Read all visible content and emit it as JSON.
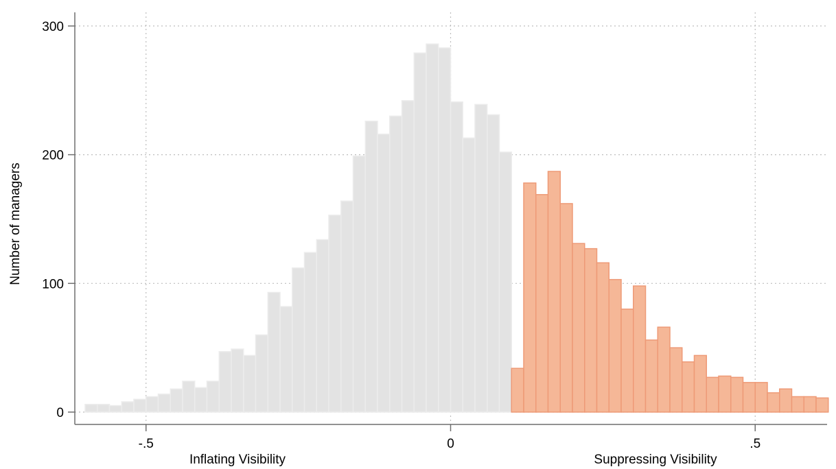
{
  "chart_data": {
    "type": "bar",
    "ylabel": "Number of managers",
    "xlim": [
      -0.615,
      0.615
    ],
    "ylim": [
      0,
      305
    ],
    "yticks": [
      0,
      100,
      200,
      300
    ],
    "ytick_labels": [
      "0",
      "100",
      "200",
      "300"
    ],
    "xticks": [
      -0.5,
      0,
      0.5
    ],
    "xtick_labels": [
      "-.5",
      "0",
      ".5"
    ],
    "xaxis_annotations": [
      "Inflating Visibility",
      "Suppressing Visibility"
    ],
    "grid": true,
    "bin_start": -0.6,
    "bin_width": 0.02,
    "values": [
      6,
      6,
      5,
      8,
      10,
      12,
      14,
      18,
      24,
      19,
      24,
      47,
      49,
      44,
      60,
      93,
      82,
      112,
      124,
      134,
      153,
      164,
      199,
      226,
      216,
      230,
      242,
      279,
      286,
      283,
      241,
      213,
      239,
      231,
      202,
      34,
      178,
      169,
      187,
      162,
      131,
      127,
      116,
      103,
      80,
      98,
      56,
      66,
      50,
      39,
      44,
      27,
      28,
      27,
      23,
      23,
      15,
      18,
      12,
      12,
      11
    ],
    "highlight_threshold": 0.1,
    "colors": {
      "inflating_fill": "#e3e3e3",
      "inflating_edge": "#ececec",
      "suppressing_fill": "#f5b797",
      "suppressing_edge": "#ee9a77"
    }
  }
}
